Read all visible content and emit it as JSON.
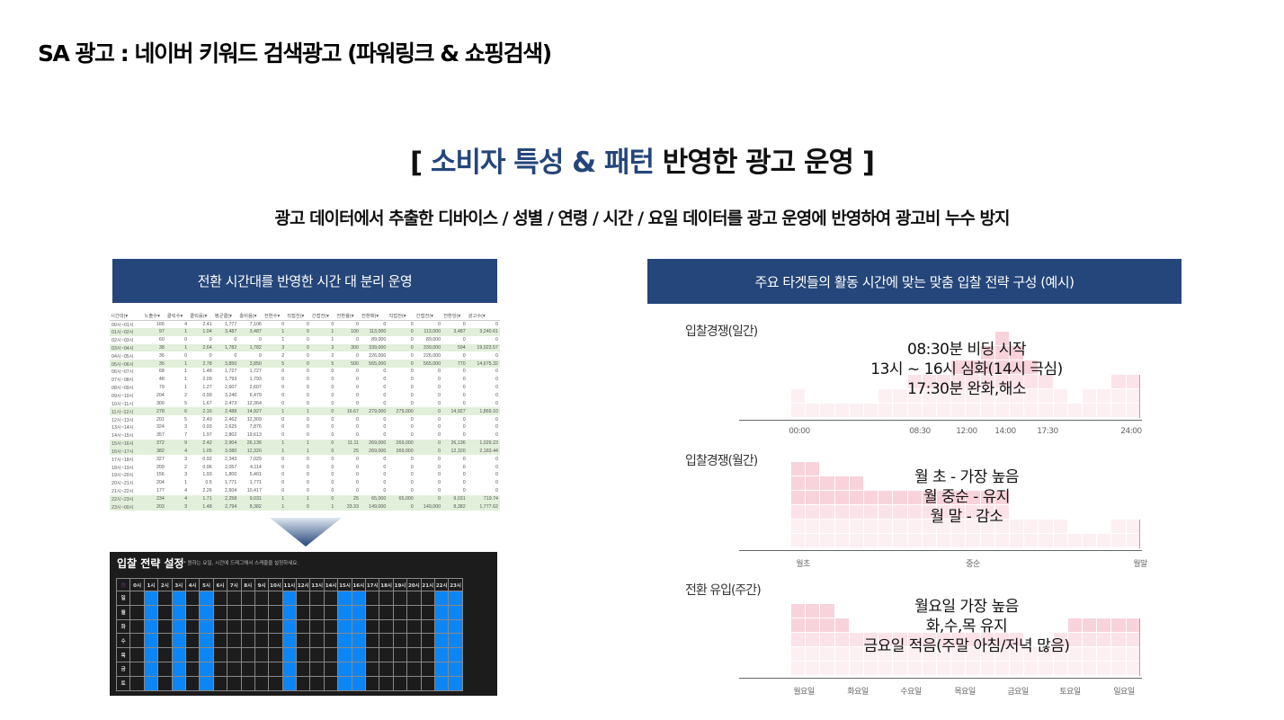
{
  "title": "SA 광고 : 네이버 키워드 검색광고 (파워링크 & 쇼핑검색)",
  "headline": {
    "open": "[ ",
    "highlight": "소비자 특성 & 패턴",
    "rest": " 반영한 광고 운영 ]",
    "accent_color": "#24467a"
  },
  "subtitle": "광고 데이터에서 추출한 디바이스 / 성별 / 연령 / 시간 / 요일 데이터를 광고 운영에 반영하여 광고비 누수 방지",
  "left_banner": "전환 시간대를 반영한 시간 대 분리 운영",
  "right_banner": "주요 타겟들의 활동 시간에 맞는 맞춤 입찰 전략 구성 (예시)",
  "table": {
    "headers": [
      "시간대(",
      "노출수",
      "클릭수",
      "클릭률(",
      "평균클(",
      "총비용(",
      "전환수",
      "직접전(",
      "간접전(",
      "전환율(",
      "전환매(",
      "직접전(",
      "간접전(",
      "전환당(",
      "광고수("
    ],
    "highlight_color": "#e2efda",
    "rows": [
      {
        "hl": false,
        "cells": [
          "00시~01시",
          "166",
          "4",
          "2.41",
          "1,777",
          "7,106",
          "0",
          "0",
          "0",
          "0",
          "0",
          "0",
          "0",
          "0",
          "0"
        ]
      },
      {
        "hl": true,
        "cells": [
          "01시~02시",
          "97",
          "1",
          "1.04",
          "3,487",
          "3,487",
          "1",
          "0",
          "1",
          "100",
          "113,000",
          "0",
          "113,000",
          "3,487",
          "3,240.61"
        ]
      },
      {
        "hl": false,
        "cells": [
          "02시~03시",
          "60",
          "0",
          "0",
          "0",
          "0",
          "1",
          "0",
          "1",
          "0",
          "89,000",
          "0",
          "89,000",
          "0",
          "0"
        ]
      },
      {
        "hl": true,
        "cells": [
          "03시~04시",
          "38",
          "1",
          "2.64",
          "1,782",
          "1,782",
          "3",
          "0",
          "3",
          "300",
          "339,000",
          "0",
          "339,000",
          "594",
          "19,023.57"
        ]
      },
      {
        "hl": false,
        "cells": [
          "04시~05시",
          "36",
          "0",
          "0",
          "0",
          "0",
          "2",
          "0",
          "2",
          "0",
          "226,000",
          "0",
          "226,000",
          "0",
          "0"
        ]
      },
      {
        "hl": true,
        "cells": [
          "05시~06시",
          "36",
          "1",
          "2.78",
          "3,850",
          "3,850",
          "5",
          "0",
          "5",
          "500",
          "565,000",
          "0",
          "565,000",
          "770",
          "14,675.32"
        ]
      },
      {
        "hl": false,
        "cells": [
          "06시~07시",
          "68",
          "1",
          "1.48",
          "1,727",
          "1,727",
          "0",
          "0",
          "0",
          "0",
          "0",
          "0",
          "0",
          "0",
          "0"
        ]
      },
      {
        "hl": false,
        "cells": [
          "07시~08시",
          "48",
          "1",
          "2.09",
          "1,793",
          "1,793",
          "0",
          "0",
          "0",
          "0",
          "0",
          "0",
          "0",
          "0",
          "0"
        ]
      },
      {
        "hl": false,
        "cells": [
          "08시~09시",
          "79",
          "1",
          "1.27",
          "2,607",
          "2,607",
          "0",
          "0",
          "0",
          "0",
          "0",
          "0",
          "0",
          "0",
          "0"
        ]
      },
      {
        "hl": false,
        "cells": [
          "09시~10시",
          "204",
          "2",
          "0.99",
          "3,240",
          "6,479",
          "0",
          "0",
          "0",
          "0",
          "0",
          "0",
          "0",
          "0",
          "0"
        ]
      },
      {
        "hl": false,
        "cells": [
          "10시~11시",
          "300",
          "5",
          "1.67",
          "2,473",
          "12,364",
          "0",
          "0",
          "0",
          "0",
          "0",
          "0",
          "0",
          "0",
          "0"
        ]
      },
      {
        "hl": true,
        "cells": [
          "11시~12시",
          "278",
          "6",
          "2.16",
          "2,488",
          "14,927",
          "1",
          "1",
          "0",
          "16.67",
          "279,000",
          "279,000",
          "0",
          "14,927",
          "1,869.10"
        ]
      },
      {
        "hl": false,
        "cells": [
          "12시~13시",
          "201",
          "5",
          "2.49",
          "2,462",
          "12,309",
          "0",
          "0",
          "0",
          "0",
          "0",
          "0",
          "0",
          "0",
          "0"
        ]
      },
      {
        "hl": false,
        "cells": [
          "13시~14시",
          "324",
          "3",
          "0.93",
          "2,625",
          "7,876",
          "0",
          "0",
          "0",
          "0",
          "0",
          "0",
          "0",
          "0",
          "0"
        ]
      },
      {
        "hl": false,
        "cells": [
          "14시~15시",
          "357",
          "7",
          "1.97",
          "2,802",
          "19,613",
          "0",
          "0",
          "0",
          "0",
          "0",
          "0",
          "0",
          "0",
          "0"
        ]
      },
      {
        "hl": true,
        "cells": [
          "15시~16시",
          "372",
          "9",
          "2.42",
          "2,904",
          "26,136",
          "1",
          "1",
          "0",
          "11.11",
          "269,000",
          "269,000",
          "0",
          "26,136",
          "1,029.23"
        ]
      },
      {
        "hl": true,
        "cells": [
          "16시~17시",
          "382",
          "4",
          "1.05",
          "3,080",
          "12,320",
          "1",
          "1",
          "0",
          "25",
          "269,000",
          "269,000",
          "0",
          "12,320",
          "2,183.44"
        ]
      },
      {
        "hl": false,
        "cells": [
          "17시~18시",
          "327",
          "3",
          "0.92",
          "2,343",
          "7,029",
          "0",
          "0",
          "0",
          "0",
          "0",
          "0",
          "0",
          "0",
          "0"
        ]
      },
      {
        "hl": false,
        "cells": [
          "18시~19시",
          "209",
          "2",
          "0.96",
          "2,057",
          "4,114",
          "0",
          "0",
          "0",
          "0",
          "0",
          "0",
          "0",
          "0",
          "0"
        ]
      },
      {
        "hl": false,
        "cells": [
          "19시~20시",
          "156",
          "3",
          "1.93",
          "1,800",
          "5,401",
          "0",
          "0",
          "0",
          "0",
          "0",
          "0",
          "0",
          "0",
          "0"
        ]
      },
      {
        "hl": false,
        "cells": [
          "20시~21시",
          "204",
          "1",
          "0.5",
          "1,771",
          "1,771",
          "0",
          "0",
          "0",
          "0",
          "0",
          "0",
          "0",
          "0",
          "0"
        ]
      },
      {
        "hl": false,
        "cells": [
          "21시~22시",
          "177",
          "4",
          "2.26",
          "2,604",
          "10,417",
          "0",
          "0",
          "0",
          "0",
          "0",
          "0",
          "0",
          "0",
          "0"
        ]
      },
      {
        "hl": true,
        "cells": [
          "22시~23시",
          "234",
          "4",
          "1.71",
          "2,258",
          "9,031",
          "1",
          "1",
          "0",
          "25",
          "65,000",
          "65,000",
          "0",
          "9,031",
          "719.74"
        ]
      },
      {
        "hl": true,
        "cells": [
          "23시~00시",
          "203",
          "3",
          "1.48",
          "2,794",
          "8,382",
          "1",
          "0",
          "1",
          "33.33",
          "149,000",
          "0",
          "149,000",
          "8,382",
          "1,777.62"
        ]
      }
    ]
  },
  "bid_panel": {
    "title": "입찰 전략 설정",
    "note": "* 원하는 요일, 시간에 드래그해서 스케줄을 설정하세요.",
    "corner_icon": "clock-icon",
    "hours": [
      "0시",
      "1시",
      "2시",
      "3시",
      "4시",
      "5시",
      "6시",
      "7시",
      "8시",
      "9시",
      "10시",
      "11시",
      "12시",
      "13시",
      "14시",
      "15시",
      "16시",
      "17시",
      "18시",
      "19시",
      "20시",
      "21시",
      "22시",
      "23시"
    ],
    "days": [
      "일",
      "월",
      "화",
      "수",
      "목",
      "금",
      "토"
    ],
    "active_hours": [
      1,
      3,
      5,
      11,
      15,
      16,
      22,
      23
    ],
    "active_color": "#0d86f5"
  },
  "charts": [
    {
      "label": "입찰경쟁(일간)",
      "type": "bar",
      "levels": [
        2,
        1,
        1,
        1,
        1,
        1,
        2,
        2,
        3,
        3,
        3,
        4,
        4,
        5,
        6,
        5,
        4,
        3,
        2,
        1,
        2,
        2,
        3,
        3
      ],
      "ticks": [
        "00:00",
        "08:30",
        "12:00",
        "14:00",
        "17:30",
        "24:00"
      ],
      "annotation": [
        "08:30분 비딩 시작",
        "13시 ~ 16시 심화(14시 극심)",
        "17:30분 완화,해소"
      ]
    },
    {
      "label": "입찰경쟁(월간)",
      "type": "bar",
      "levels": [
        6,
        6,
        5,
        5,
        5,
        4,
        4,
        4,
        4,
        4,
        4,
        4,
        4,
        4,
        4,
        2,
        2,
        2,
        2,
        1,
        1,
        1,
        2,
        2
      ],
      "ticks": [
        "월초",
        "중순",
        "월말"
      ],
      "annotation": [
        "월 초 - 가장 높음",
        "월 중순 - 유지",
        "월 말 - 감소"
      ]
    },
    {
      "label": "전환 유입(주간)",
      "type": "bar",
      "levels": [
        5,
        5,
        5,
        4,
        3,
        3,
        3,
        3,
        3,
        3,
        3,
        3,
        3,
        3,
        3,
        3,
        2,
        2,
        3,
        4,
        4,
        4,
        4,
        4
      ],
      "ticks": [
        "월요일",
        "화요일",
        "수요일",
        "목요일",
        "금요일",
        "토요일",
        "일요일"
      ],
      "annotation": [
        "월요일 가장 높음",
        "화,수,목 유지",
        "금요일 적음(주말 아침/저녁 많음)"
      ]
    }
  ],
  "colors": {
    "cell_top": "#f8d3dc",
    "cell_bottom": "#fdf0f3",
    "edge": "#e58aa0"
  }
}
